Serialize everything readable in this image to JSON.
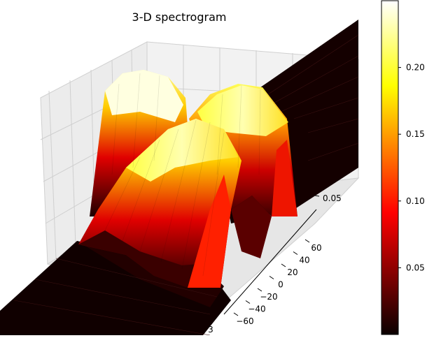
{
  "chart_data": {
    "type": "surface",
    "title": "3-D spectrogram",
    "xlabel": "",
    "ylabel": "",
    "zlabel": "",
    "colormap": "hot",
    "x_ticks": [
      "3"
    ],
    "y_ticks": [
      "60",
      "40",
      "20",
      "0",
      "−20",
      "−40",
      "−60"
    ],
    "y_tick_values": [
      60,
      40,
      20,
      0,
      -20,
      -40,
      -60
    ],
    "z_ticks": [
      "0.05"
    ],
    "colorbar": {
      "ticks": [
        "0.05",
        "0.10",
        "0.15",
        "0.20"
      ],
      "tick_values": [
        0.05,
        0.1,
        0.15,
        0.2
      ],
      "vmin": 0.0,
      "vmax": 0.25
    },
    "surface_peaks": [
      {
        "position": "back-left",
        "z": 0.25
      },
      {
        "position": "back-right",
        "z": 0.2
      },
      {
        "position": "front",
        "z": 0.2
      }
    ],
    "grid": true
  }
}
